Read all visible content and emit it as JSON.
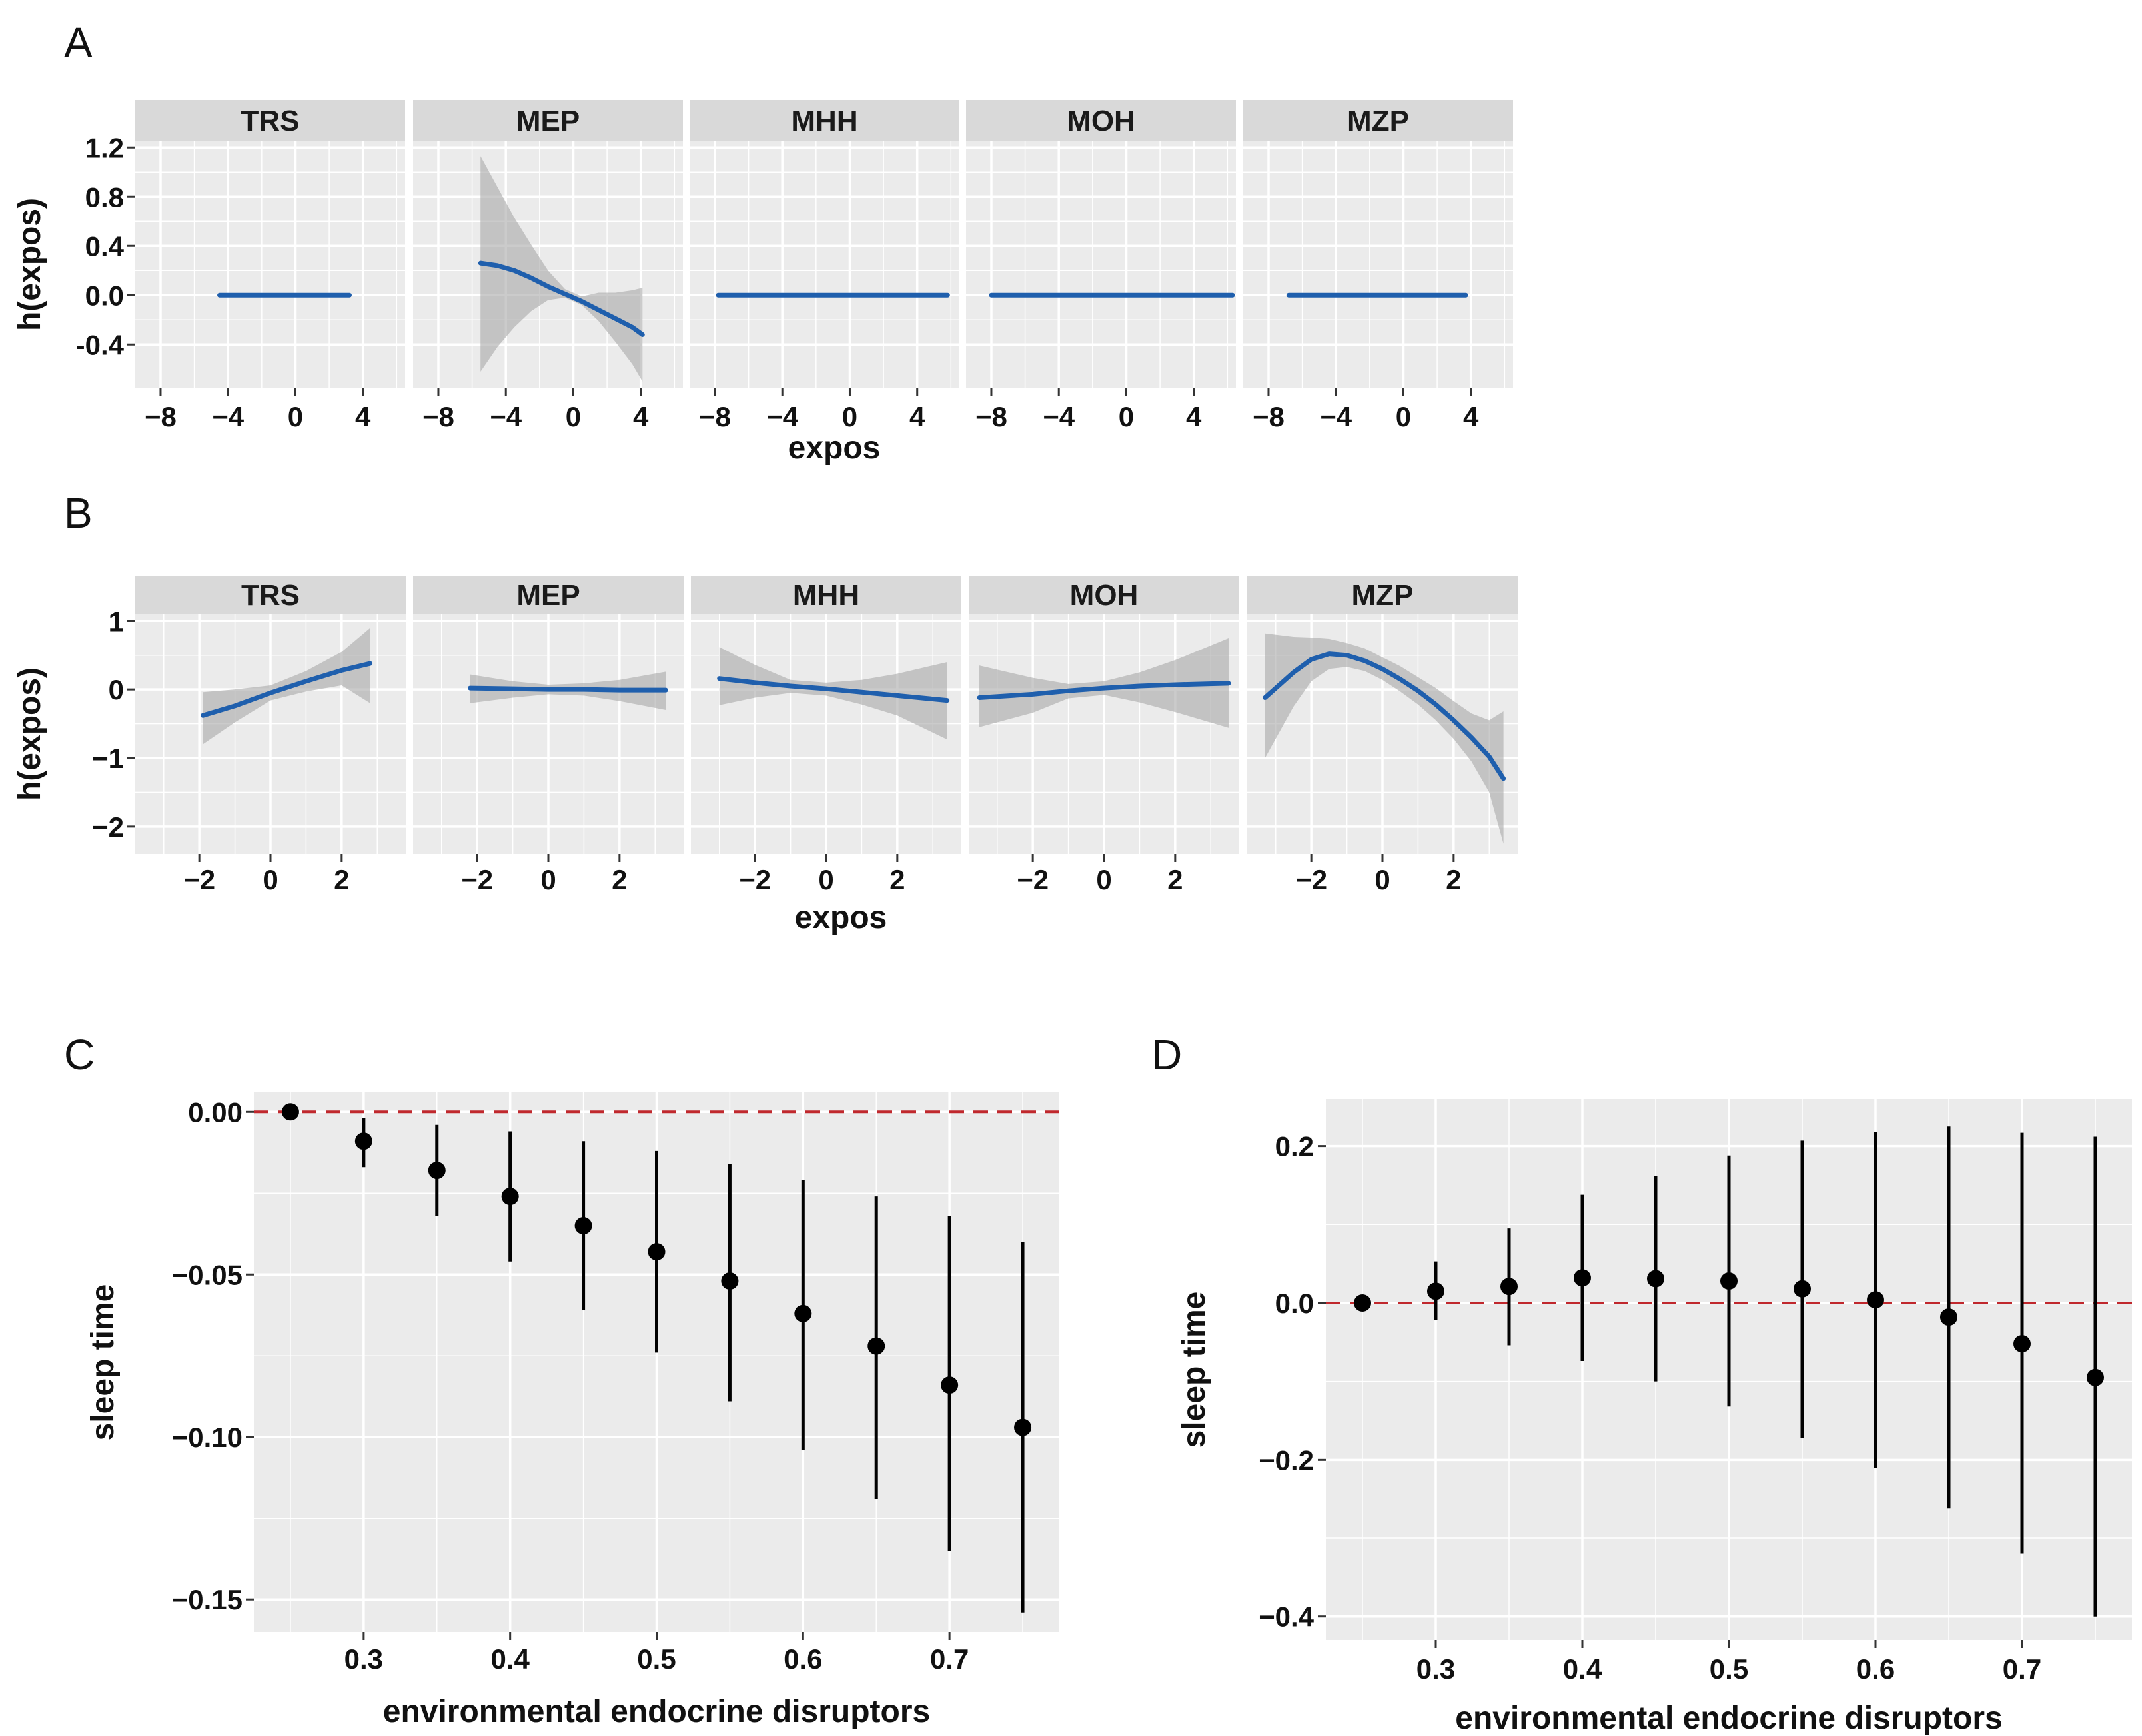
{
  "panel_labels": {
    "a": "A",
    "b": "B",
    "c": "C",
    "d": "D"
  },
  "colors": {
    "panel_bg": "#ebebeb",
    "strip_bg": "#d9d9d9",
    "grid": "#ffffff",
    "line": "#1f5fad",
    "ribbon": "#a8a8a8",
    "point": "#000000",
    "reference": "#c0282d"
  },
  "chart_data": [
    {
      "id": "A",
      "type": "line",
      "title": "",
      "xlabel": "expos",
      "ylabel": "h(expos)",
      "xlim": [
        -9.5,
        6.5
      ],
      "ylim": [
        -0.75,
        1.25
      ],
      "xticks": [
        -8,
        -4,
        0,
        4
      ],
      "xtick_labels": [
        "−8",
        "−4",
        "0",
        "4"
      ],
      "yticks": [
        -0.4,
        0.0,
        0.4,
        0.8,
        1.2
      ],
      "ytick_labels": [
        "-0.4",
        "0.0",
        "0.4",
        "0.8",
        "1.2"
      ],
      "facets": [
        {
          "name": "TRS",
          "x": [
            -4.5,
            3.2
          ],
          "y": [
            0.0,
            0.0
          ],
          "lower": [
            -0.015,
            -0.015
          ],
          "upper": [
            0.015,
            0.015
          ]
        },
        {
          "name": "MEP",
          "x": [
            -5.5,
            -4.5,
            -3.5,
            -2.5,
            -1.5,
            -0.5,
            0.5,
            1.5,
            2.5,
            3.5,
            4.1
          ],
          "y": [
            0.26,
            0.24,
            0.2,
            0.14,
            0.07,
            0.01,
            -0.05,
            -0.12,
            -0.19,
            -0.26,
            -0.32
          ],
          "lower": [
            -0.62,
            -0.42,
            -0.26,
            -0.13,
            -0.04,
            -0.02,
            -0.08,
            -0.21,
            -0.38,
            -0.56,
            -0.7
          ],
          "upper": [
            1.13,
            0.88,
            0.63,
            0.41,
            0.2,
            0.05,
            -0.01,
            0.02,
            0.02,
            0.04,
            0.06
          ]
        },
        {
          "name": "MHH",
          "x": [
            -7.8,
            5.8
          ],
          "y": [
            0.0,
            0.0
          ],
          "lower": [
            -0.015,
            -0.015
          ],
          "upper": [
            0.015,
            0.015
          ]
        },
        {
          "name": "MOH",
          "x": [
            -8.0,
            6.3
          ],
          "y": [
            0.0,
            0.0
          ],
          "lower": [
            -0.015,
            -0.015
          ],
          "upper": [
            0.015,
            0.015
          ]
        },
        {
          "name": "MZP",
          "x": [
            -6.8,
            3.7
          ],
          "y": [
            0.0,
            0.0
          ],
          "lower": [
            -0.015,
            -0.015
          ],
          "upper": [
            0.015,
            0.015
          ]
        }
      ]
    },
    {
      "id": "B",
      "type": "line",
      "title": "",
      "xlabel": "expos",
      "ylabel": "h(expos)",
      "xlim": [
        -3.8,
        3.8
      ],
      "ylim": [
        -2.4,
        1.1
      ],
      "xticks": [
        -2,
        0,
        2
      ],
      "xtick_labels": [
        "−2",
        "0",
        "2"
      ],
      "yticks": [
        -2,
        -1,
        0,
        1
      ],
      "ytick_labels": [
        "−2",
        "−1",
        "0",
        "1"
      ],
      "facets": [
        {
          "name": "TRS",
          "x": [
            -1.9,
            -1.0,
            0.0,
            1.0,
            2.0,
            2.8
          ],
          "y": [
            -0.38,
            -0.24,
            -0.05,
            0.12,
            0.28,
            0.38
          ],
          "lower": [
            -0.8,
            -0.48,
            -0.16,
            -0.03,
            0.06,
            -0.2
          ],
          "upper": [
            -0.04,
            0.0,
            0.06,
            0.27,
            0.55,
            0.9
          ]
        },
        {
          "name": "MEP",
          "x": [
            -2.2,
            -1.0,
            0.0,
            1.0,
            2.0,
            3.3
          ],
          "y": [
            0.02,
            0.01,
            0.0,
            0.0,
            -0.01,
            -0.01
          ],
          "lower": [
            -0.2,
            -0.12,
            -0.07,
            -0.09,
            -0.17,
            -0.3
          ],
          "upper": [
            0.22,
            0.12,
            0.07,
            0.09,
            0.14,
            0.26
          ]
        },
        {
          "name": "MHH",
          "x": [
            -3.0,
            -2.0,
            -1.0,
            0.0,
            1.0,
            2.0,
            3.4
          ],
          "y": [
            0.16,
            0.1,
            0.05,
            0.01,
            -0.04,
            -0.09,
            -0.16
          ],
          "lower": [
            -0.23,
            -0.12,
            -0.05,
            -0.09,
            -0.22,
            -0.38,
            -0.73
          ],
          "upper": [
            0.62,
            0.36,
            0.14,
            0.1,
            0.14,
            0.23,
            0.4
          ]
        },
        {
          "name": "MOH",
          "x": [
            -3.5,
            -2.0,
            -1.0,
            0.0,
            1.0,
            2.0,
            3.5
          ],
          "y": [
            -0.12,
            -0.07,
            -0.02,
            0.02,
            0.05,
            0.07,
            0.09
          ],
          "lower": [
            -0.55,
            -0.34,
            -0.13,
            -0.08,
            -0.19,
            -0.33,
            -0.56
          ],
          "upper": [
            0.35,
            0.17,
            0.08,
            0.12,
            0.25,
            0.43,
            0.75
          ]
        },
        {
          "name": "MZP",
          "x": [
            -3.3,
            -2.5,
            -2.0,
            -1.5,
            -1.0,
            -0.5,
            0.0,
            0.5,
            1.0,
            1.5,
            2.0,
            2.5,
            3.0,
            3.4
          ],
          "y": [
            -0.12,
            0.25,
            0.44,
            0.52,
            0.5,
            0.42,
            0.3,
            0.15,
            -0.02,
            -0.22,
            -0.45,
            -0.7,
            -0.98,
            -1.3
          ],
          "lower": [
            -1.0,
            -0.25,
            0.12,
            0.3,
            0.33,
            0.27,
            0.14,
            -0.03,
            -0.22,
            -0.45,
            -0.72,
            -1.05,
            -1.5,
            -2.25
          ],
          "upper": [
            0.82,
            0.77,
            0.76,
            0.74,
            0.68,
            0.6,
            0.47,
            0.34,
            0.18,
            0.02,
            -0.17,
            -0.35,
            -0.45,
            -0.32
          ]
        }
      ]
    },
    {
      "id": "C",
      "type": "scatter",
      "title": "",
      "xlabel": "environmental endocrine disruptors",
      "ylabel": "sleep time",
      "xlim": [
        0.225,
        0.775
      ],
      "ylim": [
        -0.16,
        0.006
      ],
      "reference_y": 0.0,
      "xticks": [
        0.3,
        0.4,
        0.5,
        0.6,
        0.7
      ],
      "xtick_labels": [
        "0.3",
        "0.4",
        "0.5",
        "0.6",
        "0.7"
      ],
      "yticks": [
        0.0,
        -0.05,
        -0.1,
        -0.15
      ],
      "ytick_labels": [
        "0.00",
        "−0.05",
        "−0.10",
        "−0.15"
      ],
      "x": [
        0.25,
        0.3,
        0.35,
        0.4,
        0.45,
        0.5,
        0.55,
        0.6,
        0.65,
        0.7,
        0.75
      ],
      "y": [
        0.0,
        -0.009,
        -0.018,
        -0.026,
        -0.035,
        -0.043,
        -0.052,
        -0.062,
        -0.072,
        -0.084,
        -0.097
      ],
      "lower": [
        0.0,
        -0.017,
        -0.032,
        -0.046,
        -0.061,
        -0.074,
        -0.089,
        -0.104,
        -0.119,
        -0.135,
        -0.154
      ],
      "upper": [
        0.0,
        -0.002,
        -0.004,
        -0.006,
        -0.009,
        -0.012,
        -0.016,
        -0.021,
        -0.026,
        -0.032,
        -0.04
      ]
    },
    {
      "id": "D",
      "type": "scatter",
      "title": "",
      "xlabel": "environmental endocrine disruptors",
      "ylabel": "sleep time",
      "xlim": [
        0.225,
        0.775
      ],
      "ylim": [
        -0.43,
        0.26
      ],
      "reference_y": 0.0,
      "xticks": [
        0.3,
        0.4,
        0.5,
        0.6,
        0.7
      ],
      "xtick_labels": [
        "0.3",
        "0.4",
        "0.5",
        "0.6",
        "0.7"
      ],
      "yticks": [
        0.2,
        0.0,
        -0.2,
        -0.4
      ],
      "ytick_labels": [
        "0.2",
        "0.0",
        "−0.2",
        "−0.4"
      ],
      "x": [
        0.25,
        0.3,
        0.35,
        0.4,
        0.45,
        0.5,
        0.55,
        0.6,
        0.65,
        0.7,
        0.75
      ],
      "y": [
        0.0,
        0.015,
        0.021,
        0.032,
        0.031,
        0.028,
        0.018,
        0.004,
        -0.018,
        -0.052,
        -0.095
      ],
      "lower": [
        0.0,
        -0.022,
        -0.054,
        -0.074,
        -0.1,
        -0.132,
        -0.172,
        -0.21,
        -0.262,
        -0.32,
        -0.4
      ],
      "upper": [
        0.0,
        0.053,
        0.095,
        0.138,
        0.162,
        0.188,
        0.207,
        0.218,
        0.225,
        0.217,
        0.212
      ]
    }
  ]
}
